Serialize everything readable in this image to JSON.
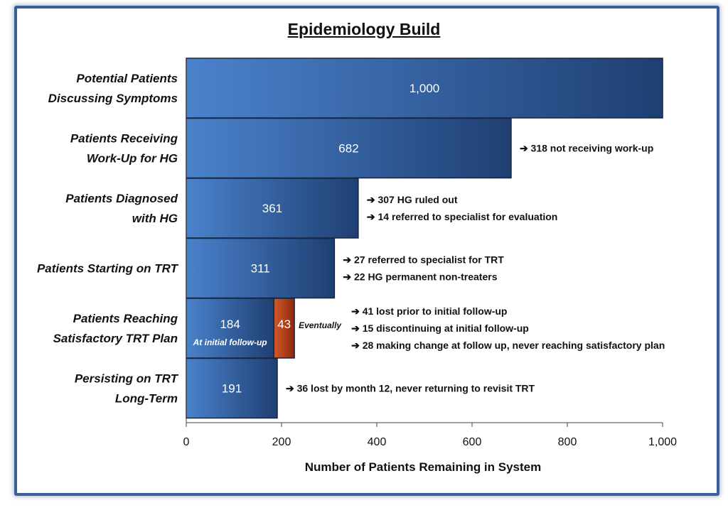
{
  "chart_data": {
    "type": "bar",
    "orientation": "horizontal",
    "title": "Epidemiology Build",
    "xlabel": "Number of Patients Remaining in System",
    "xlim": [
      0,
      1000
    ],
    "xticks": [
      "0",
      "200",
      "400",
      "600",
      "800",
      "1,000"
    ],
    "xtick_values": [
      0,
      200,
      400,
      600,
      800,
      1000
    ],
    "colors": {
      "bar": "#3a6fb8",
      "bar_dark": "#1f3f72",
      "highlight": "#c0461f"
    },
    "categories": [
      {
        "label_lines": [
          "Potential Patients",
          "Discussing Symptoms"
        ],
        "value": 1000,
        "value_label": "1,000",
        "notes": []
      },
      {
        "label_lines": [
          "Patients Receiving",
          "Work-Up for HG"
        ],
        "value": 682,
        "value_label": "682",
        "notes": [
          "318 not receiving work-up"
        ]
      },
      {
        "label_lines": [
          "Patients Diagnosed",
          "with HG"
        ],
        "value": 361,
        "value_label": "361",
        "notes": [
          "307 HG ruled out",
          "14 referred to specialist for evaluation"
        ]
      },
      {
        "label_lines": [
          "Patients Starting on TRT"
        ],
        "value": 311,
        "value_label": "311",
        "notes": [
          "27 referred to specialist for TRT",
          "22 HG permanent non-treaters"
        ]
      },
      {
        "label_lines": [
          "Patients Reaching",
          "Satisfactory TRT Plan"
        ],
        "value": 184,
        "value_label": "184",
        "sub_label": "At initial follow-up",
        "extra_value": 43,
        "extra_label": "43",
        "extra_note": "Eventually",
        "notes": [
          "41 lost prior to initial follow-up",
          "15 discontinuing  at initial follow-up",
          "28 making change at follow up, never reaching satisfactory plan"
        ]
      },
      {
        "label_lines": [
          "Persisting on TRT",
          "Long-Term"
        ],
        "value": 191,
        "value_label": "191",
        "notes": [
          "36 lost by month 12, never returning to revisit TRT"
        ]
      }
    ]
  }
}
